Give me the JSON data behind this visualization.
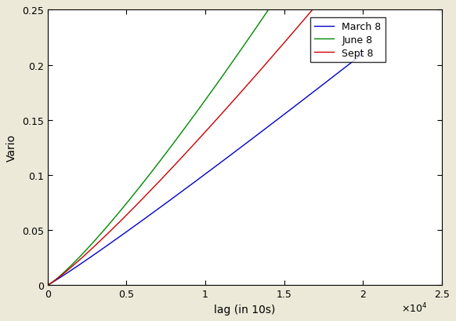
{
  "title": "",
  "xlabel": "lag (in 10s)",
  "ylabel": "Vario",
  "xlim": [
    0,
    25000
  ],
  "ylim": [
    0,
    0.25
  ],
  "xticks": [
    0,
    5000,
    10000,
    15000,
    20000,
    25000
  ],
  "xtick_labels": [
    "0",
    "0.5",
    "1",
    "1.5",
    "2",
    "2.5"
  ],
  "yticks": [
    0,
    0.05,
    0.1,
    0.15,
    0.2,
    0.25
  ],
  "series": [
    {
      "label": "March 8",
      "color": "#0000cc",
      "alpha": 1.06,
      "scale": 5.8e-06
    },
    {
      "label": "June 8",
      "color": "#008800",
      "alpha": 1.18,
      "scale": 3.2e-06
    },
    {
      "label": "Sept 8",
      "color": "#cc0000",
      "alpha": 1.13,
      "scale": 4.2e-06
    }
  ],
  "figsize": [
    5.82,
    4.1
  ],
  "dpi": 100
}
